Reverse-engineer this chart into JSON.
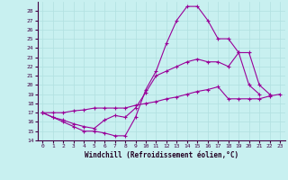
{
  "xlabel": "Windchill (Refroidissement éolien,°C)",
  "bg_color": "#c8f0f0",
  "line_color": "#990099",
  "grid_color": "#b0e0e0",
  "xlim": [
    -0.5,
    23.5
  ],
  "ylim": [
    14,
    29
  ],
  "xticks": [
    0,
    1,
    2,
    3,
    4,
    5,
    6,
    7,
    8,
    9,
    10,
    11,
    12,
    13,
    14,
    15,
    16,
    17,
    18,
    19,
    20,
    21,
    22,
    23
  ],
  "yticks": [
    14,
    15,
    16,
    17,
    18,
    19,
    20,
    21,
    22,
    23,
    24,
    25,
    26,
    27,
    28
  ],
  "series1_x": [
    0,
    1,
    2,
    3,
    4,
    5,
    6,
    7,
    8,
    9,
    10,
    11,
    12,
    13,
    14,
    15,
    16,
    17,
    18,
    19,
    20,
    21
  ],
  "series1_y": [
    17.0,
    16.5,
    16.0,
    15.5,
    15.0,
    15.0,
    14.8,
    14.5,
    14.5,
    16.5,
    19.5,
    21.5,
    24.5,
    27.0,
    28.5,
    28.5,
    27.0,
    25.0,
    25.0,
    23.5,
    20.0,
    19.0
  ],
  "series2_x": [
    0,
    1,
    2,
    3,
    4,
    5,
    6,
    7,
    8,
    9,
    10,
    11,
    12,
    13,
    14,
    15,
    16,
    17,
    18,
    19,
    20,
    21,
    22
  ],
  "series2_y": [
    17.0,
    16.5,
    16.2,
    15.8,
    15.5,
    15.3,
    16.2,
    16.7,
    16.5,
    17.5,
    19.2,
    21.0,
    21.5,
    22.0,
    22.5,
    22.8,
    22.5,
    22.5,
    22.0,
    23.5,
    23.5,
    20.0,
    19.0
  ],
  "series3_x": [
    0,
    1,
    2,
    3,
    4,
    5,
    6,
    7,
    8,
    9,
    10,
    11,
    12,
    13,
    14,
    15,
    16,
    17,
    18,
    19,
    20,
    21,
    22,
    23
  ],
  "series3_y": [
    17.0,
    17.0,
    17.0,
    17.2,
    17.3,
    17.5,
    17.5,
    17.5,
    17.5,
    17.8,
    18.0,
    18.2,
    18.5,
    18.7,
    19.0,
    19.3,
    19.5,
    19.8,
    18.5,
    18.5,
    18.5,
    18.5,
    18.8,
    19.0
  ]
}
